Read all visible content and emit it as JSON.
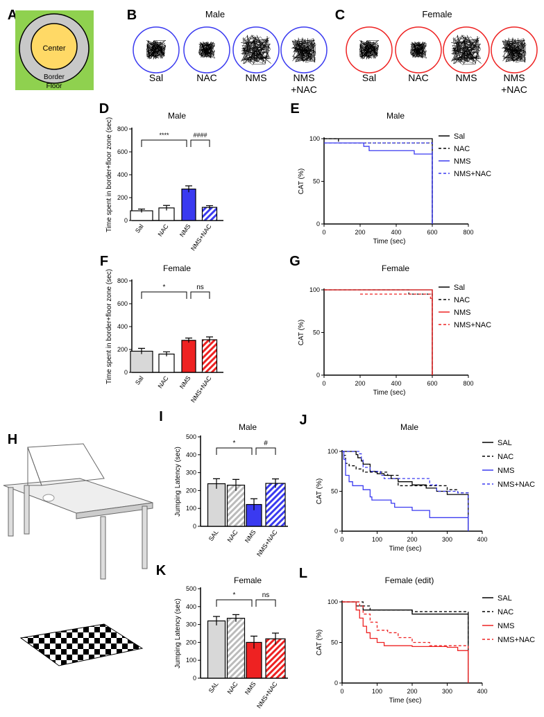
{
  "colors": {
    "blue": "#3a3af0",
    "red": "#ee2222",
    "gray": "#d8d8d8",
    "floor": "#8fd14f",
    "border": "#c8c8c8",
    "center": "#ffd966"
  },
  "panel_a": {
    "letter": "A",
    "center": "Center",
    "border": "Border",
    "floor": "Floor"
  },
  "panel_b": {
    "letter": "B",
    "title": "Male",
    "labels": [
      "Sal",
      "NAC",
      "NMS",
      "NMS\n+NAC"
    ]
  },
  "panel_c": {
    "letter": "C",
    "title": "Female",
    "labels": [
      "Sal",
      "NAC",
      "NMS",
      "NMS\n+NAC"
    ]
  },
  "panel_h": {
    "letter": "H"
  },
  "chart_data": [
    {
      "id": "D",
      "type": "bar",
      "title": "Male",
      "ylabel": "Time spent in border+floor zone (sec)",
      "ylim": [
        0,
        800
      ],
      "yticks": [
        0,
        200,
        400,
        600,
        800
      ],
      "categories": [
        "Sal",
        "NAC",
        "NMS",
        "NMS+NAC"
      ],
      "values": [
        85,
        110,
        275,
        115
      ],
      "sem": [
        15,
        22,
        28,
        15
      ],
      "fills": [
        "white",
        "white",
        "blue",
        "blue-hatch"
      ],
      "significance": [
        {
          "from": 0,
          "to": 2,
          "label": "****"
        },
        {
          "from": 2,
          "to": 3,
          "label": "####"
        }
      ]
    },
    {
      "id": "E",
      "type": "line",
      "title": "Male",
      "xlabel": "Time (sec)",
      "ylabel": "CAT (%)",
      "xlim": [
        0,
        800
      ],
      "ylim": [
        0,
        100
      ],
      "xticks": [
        0,
        200,
        400,
        600,
        800
      ],
      "yticks": [
        0,
        50,
        100
      ],
      "legend": "top-right",
      "series": [
        {
          "name": "Sal",
          "color": "#000000",
          "dash": false,
          "steps": [
            [
              0,
              100
            ],
            [
              600,
              100
            ],
            [
              600,
              0
            ]
          ]
        },
        {
          "name": "NAC",
          "color": "#000000",
          "dash": true,
          "steps": [
            [
              0,
              100
            ],
            [
              80,
              95
            ],
            [
              600,
              95
            ],
            [
              600,
              0
            ]
          ]
        },
        {
          "name": "NMS",
          "color": "#3a3af0",
          "dash": false,
          "steps": [
            [
              0,
              95
            ],
            [
              220,
              91
            ],
            [
              250,
              86
            ],
            [
              500,
              82
            ],
            [
              600,
              82
            ],
            [
              600,
              0
            ]
          ]
        },
        {
          "name": "NMS+NAC",
          "color": "#3a3af0",
          "dash": true,
          "steps": [
            [
              0,
              95
            ],
            [
              600,
              95
            ],
            [
              600,
              0
            ]
          ]
        }
      ]
    },
    {
      "id": "F",
      "type": "bar",
      "title": "Female",
      "ylabel": "Time spent in border+floor zone (sec)",
      "ylim": [
        0,
        800
      ],
      "yticks": [
        0,
        200,
        400,
        600,
        800
      ],
      "categories": [
        "Sal",
        "NAC",
        "NMS",
        "NMS+NAC"
      ],
      "values": [
        185,
        160,
        280,
        285
      ],
      "sem": [
        25,
        20,
        20,
        25
      ],
      "fills": [
        "gray",
        "white",
        "red",
        "red-hatch"
      ],
      "significance": [
        {
          "from": 0,
          "to": 2,
          "label": "*"
        },
        {
          "from": 2,
          "to": 3,
          "label": "ns"
        }
      ]
    },
    {
      "id": "G",
      "type": "line",
      "title": "Female",
      "xlabel": "Time (sec)",
      "ylabel": "CAT (%)",
      "xlim": [
        0,
        800
      ],
      "ylim": [
        0,
        100
      ],
      "xticks": [
        0,
        200,
        400,
        600,
        800
      ],
      "yticks": [
        0,
        50,
        100
      ],
      "legend": "top-right",
      "series": [
        {
          "name": "Sal",
          "color": "#000000",
          "dash": false,
          "steps": [
            [
              0,
              100
            ],
            [
              600,
              100
            ],
            [
              600,
              0
            ]
          ]
        },
        {
          "name": "NAC",
          "color": "#000000",
          "dash": true,
          "steps": [
            [
              0,
              100
            ],
            [
              470,
              95
            ],
            [
              600,
              95
            ],
            [
              600,
              0
            ]
          ]
        },
        {
          "name": "NMS",
          "color": "#ee2222",
          "dash": false,
          "steps": [
            [
              0,
              100
            ],
            [
              600,
              100
            ],
            [
              600,
              0
            ]
          ]
        },
        {
          "name": "NMS+NAC",
          "color": "#ee2222",
          "dash": true,
          "steps": [
            [
              200,
              95
            ],
            [
              590,
              90
            ],
            [
              600,
              90
            ],
            [
              600,
              0
            ]
          ]
        }
      ]
    },
    {
      "id": "I",
      "type": "bar",
      "title": "Male",
      "ylabel": "Jumping Latency (sec)",
      "ylim": [
        0,
        500
      ],
      "yticks": [
        0,
        100,
        200,
        300,
        400,
        500
      ],
      "categories": [
        "SAL",
        "NAC",
        "NMS",
        "NMS+NAC"
      ],
      "values": [
        238,
        230,
        122,
        240
      ],
      "sem": [
        28,
        32,
        32,
        25
      ],
      "fills": [
        "gray",
        "gray-hatch",
        "blue",
        "blue-hatch"
      ],
      "significance": [
        {
          "from": 0,
          "to": 2,
          "label": "*"
        },
        {
          "from": 2,
          "to": 3,
          "label": "#"
        }
      ]
    },
    {
      "id": "J",
      "type": "line",
      "title": "Male",
      "xlabel": "Time (sec)",
      "ylabel": "CAT (%)",
      "xlim": [
        0,
        400
      ],
      "ylim": [
        0,
        100
      ],
      "xticks": [
        0,
        100,
        200,
        300,
        400
      ],
      "yticks": [
        0,
        50,
        100
      ],
      "legend": "top-right",
      "series": [
        {
          "name": "SAL",
          "color": "#000000",
          "dash": false,
          "steps": [
            [
              0,
              100
            ],
            [
              40,
              96
            ],
            [
              45,
              92
            ],
            [
              55,
              88
            ],
            [
              60,
              84
            ],
            [
              80,
              75
            ],
            [
              100,
              72
            ],
            [
              120,
              70
            ],
            [
              140,
              66
            ],
            [
              160,
              62
            ],
            [
              200,
              58
            ],
            [
              240,
              54
            ],
            [
              270,
              50
            ],
            [
              300,
              46
            ],
            [
              360,
              46
            ],
            [
              360,
              0
            ]
          ]
        },
        {
          "name": "NAC",
          "color": "#000000",
          "dash": true,
          "steps": [
            [
              0,
              100
            ],
            [
              5,
              95
            ],
            [
              10,
              85
            ],
            [
              20,
              82
            ],
            [
              40,
              78
            ],
            [
              60,
              74
            ],
            [
              130,
              70
            ],
            [
              160,
              57
            ],
            [
              300,
              52
            ],
            [
              330,
              48
            ],
            [
              360,
              48
            ],
            [
              360,
              0
            ]
          ]
        },
        {
          "name": "NMS",
          "color": "#3a3af0",
          "dash": false,
          "steps": [
            [
              0,
              100
            ],
            [
              5,
              90
            ],
            [
              10,
              70
            ],
            [
              20,
              62
            ],
            [
              30,
              57
            ],
            [
              60,
              52
            ],
            [
              80,
              43
            ],
            [
              85,
              39
            ],
            [
              140,
              35
            ],
            [
              150,
              30
            ],
            [
              200,
              26
            ],
            [
              250,
              17
            ],
            [
              360,
              17
            ],
            [
              360,
              0
            ]
          ]
        },
        {
          "name": "NMS+NAC",
          "color": "#3a3af0",
          "dash": true,
          "steps": [
            [
              0,
              100
            ],
            [
              50,
              97
            ],
            [
              55,
              90
            ],
            [
              60,
              80
            ],
            [
              80,
              75
            ],
            [
              110,
              70
            ],
            [
              120,
              66
            ],
            [
              250,
              58
            ],
            [
              270,
              50
            ],
            [
              330,
              48
            ],
            [
              360,
              48
            ],
            [
              360,
              0
            ]
          ]
        }
      ]
    },
    {
      "id": "K",
      "type": "bar",
      "title": "Female",
      "ylabel": "Jumping Latency (sec)",
      "ylim": [
        0,
        500
      ],
      "yticks": [
        0,
        100,
        200,
        300,
        400,
        500
      ],
      "categories": [
        "SAL",
        "NAC",
        "NMS",
        "NMS+NAC"
      ],
      "values": [
        320,
        335,
        200,
        220
      ],
      "sem": [
        25,
        20,
        35,
        32
      ],
      "fills": [
        "gray",
        "gray-hatch",
        "red",
        "red-hatch"
      ],
      "significance": [
        {
          "from": 0,
          "to": 2,
          "label": "*"
        },
        {
          "from": 2,
          "to": 3,
          "label": "ns"
        }
      ]
    },
    {
      "id": "L",
      "type": "line",
      "title": "Female (edit)",
      "xlabel": "Time (sec)",
      "ylabel": "CAT (%)",
      "xlim": [
        0,
        400
      ],
      "ylim": [
        0,
        100
      ],
      "xticks": [
        0,
        100,
        200,
        300,
        400
      ],
      "yticks": [
        0,
        50,
        100
      ],
      "legend": "top-right",
      "series": [
        {
          "name": "SAL",
          "color": "#000000",
          "dash": false,
          "steps": [
            [
              0,
              100
            ],
            [
              40,
              95
            ],
            [
              60,
              90
            ],
            [
              200,
              85
            ],
            [
              360,
              85
            ],
            [
              360,
              0
            ]
          ]
        },
        {
          "name": "NAC",
          "color": "#000000",
          "dash": true,
          "steps": [
            [
              0,
              100
            ],
            [
              60,
              95
            ],
            [
              80,
              90
            ],
            [
              200,
              88
            ],
            [
              360,
              88
            ],
            [
              360,
              0
            ]
          ]
        },
        {
          "name": "NMS",
          "color": "#ee2222",
          "dash": false,
          "steps": [
            [
              0,
              100
            ],
            [
              40,
              90
            ],
            [
              50,
              80
            ],
            [
              60,
              70
            ],
            [
              70,
              62
            ],
            [
              80,
              55
            ],
            [
              100,
              50
            ],
            [
              120,
              46
            ],
            [
              200,
              45
            ],
            [
              300,
              44
            ],
            [
              330,
              40
            ],
            [
              360,
              40
            ],
            [
              360,
              0
            ]
          ]
        },
        {
          "name": "NMS+NAC",
          "color": "#ee2222",
          "dash": true,
          "steps": [
            [
              0,
              100
            ],
            [
              50,
              95
            ],
            [
              60,
              85
            ],
            [
              80,
              75
            ],
            [
              100,
              65
            ],
            [
              130,
              62
            ],
            [
              160,
              56
            ],
            [
              200,
              50
            ],
            [
              250,
              46
            ],
            [
              360,
              46
            ],
            [
              360,
              0
            ]
          ]
        }
      ]
    }
  ]
}
